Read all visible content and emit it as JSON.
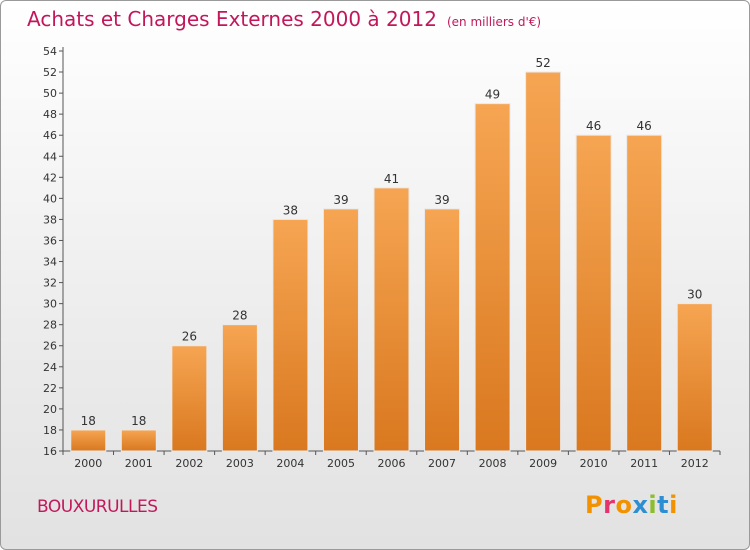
{
  "header": {
    "title": "Achats et Charges Externes 2000 à 2012",
    "subtitle": "(en milliers d'€)"
  },
  "footer": {
    "town": "BOUXURULLES",
    "logo": "Proxiti"
  },
  "colors": {
    "title": "#c2185b",
    "bar_top": "#f6a552",
    "bar_bottom": "#d9781f",
    "logo_letters": [
      "#f39200",
      "#e5336b",
      "#f39200",
      "#2e8ed2",
      "#8cbd2b",
      "#2e8ed2",
      "#f39200"
    ]
  },
  "chart_data": {
    "type": "bar",
    "title": "Achats et Charges Externes 2000 à 2012",
    "categories": [
      "2000",
      "2001",
      "2002",
      "2003",
      "2004",
      "2005",
      "2006",
      "2007",
      "2008",
      "2009",
      "2010",
      "2011",
      "2012"
    ],
    "values": [
      18,
      18,
      26,
      28,
      38,
      39,
      41,
      39,
      49,
      52,
      46,
      46,
      30
    ],
    "ylim": [
      16,
      54
    ],
    "ytick_step": 2,
    "grid": false,
    "data_labels": true
  }
}
